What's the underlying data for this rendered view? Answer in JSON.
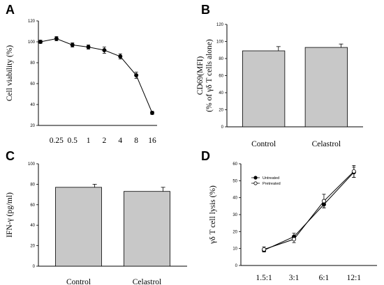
{
  "chart_data": [
    {
      "panel": "A",
      "type": "line",
      "ylabel": "Cell viability (%)",
      "ylim": [
        20,
        120
      ],
      "yticks": [
        "20",
        "40",
        "60",
        "80",
        "100",
        "120"
      ],
      "categories": [
        "",
        "0.25",
        "0.5",
        "1",
        "2",
        "4",
        "8",
        "16"
      ],
      "series": [
        {
          "values": [
            100,
            103,
            97,
            95,
            92,
            86,
            68,
            32
          ],
          "errors": [
            1.5,
            2,
            2,
            2,
            3,
            2.5,
            3,
            1.5
          ]
        }
      ]
    },
    {
      "panel": "B",
      "type": "bar",
      "ylabel_lines": [
        "CD69(MFI)",
        "(% of γδ T cells alone)"
      ],
      "ylim": [
        0,
        120
      ],
      "yticks": [
        "0",
        "20",
        "40",
        "60",
        "80",
        "100",
        "120"
      ],
      "categories": [
        "Control",
        "Celastrol"
      ],
      "values": [
        89,
        93
      ],
      "errors": [
        5,
        4
      ],
      "bar_color": "#c8c8c8"
    },
    {
      "panel": "C",
      "type": "bar",
      "ylabel": "IFN-γ (pg/ml)",
      "ylim": [
        0,
        100
      ],
      "yticks": [
        "0",
        "20",
        "40",
        "60",
        "80",
        "100"
      ],
      "categories": [
        "Control",
        "Celastrol"
      ],
      "values": [
        77,
        73
      ],
      "errors": [
        3,
        4
      ],
      "bar_color": "#c8c8c8"
    },
    {
      "panel": "D",
      "type": "line",
      "ylabel": "γδ T cell lysis  (%)",
      "ylim": [
        0,
        60
      ],
      "yticks": [
        "0",
        "10",
        "20",
        "30",
        "40",
        "50",
        "60"
      ],
      "categories": [
        "1.5:1",
        "3:1",
        "6:1",
        "12:1"
      ],
      "legend_position": "top-left",
      "series": [
        {
          "name": "Untreated",
          "marker": "filled",
          "values": [
            9,
            17,
            36,
            55
          ],
          "errors": [
            1,
            2,
            2,
            3
          ]
        },
        {
          "name": "Pretreated",
          "marker": "open",
          "values": [
            9.5,
            15.5,
            38,
            55.5
          ],
          "errors": [
            1.5,
            2,
            4,
            3.5
          ]
        }
      ]
    }
  ]
}
